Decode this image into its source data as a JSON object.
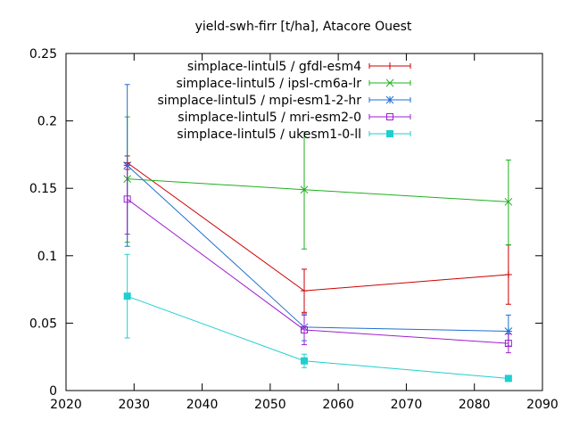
{
  "chart_data": {
    "type": "line",
    "title": "yield-swh-firr [t/ha], Atacore Ouest",
    "xlabel": "",
    "ylabel": "",
    "xlim": [
      2020,
      2090
    ],
    "ylim": [
      0,
      0.25
    ],
    "x_ticks": [
      2020,
      2030,
      2040,
      2050,
      2060,
      2070,
      2080,
      2090
    ],
    "y_ticks": [
      0,
      0.05,
      0.1,
      0.15,
      0.2,
      0.25
    ],
    "y_tick_labels": [
      "0",
      "0.05",
      "0.1",
      "0.15",
      "0.2",
      "0.25"
    ],
    "grid": false,
    "legend_position": "top-right",
    "series": [
      {
        "name": "simplace-lintul5 / gfdl-esm4",
        "color": "#cc0000",
        "marker": "plus",
        "points": [
          {
            "x": 2029,
            "y": 0.169,
            "lo": 0.164,
            "hi": 0.174
          },
          {
            "x": 2055,
            "y": 0.074,
            "lo": 0.058,
            "hi": 0.09
          },
          {
            "x": 2085,
            "y": 0.086,
            "lo": 0.064,
            "hi": 0.108
          }
        ]
      },
      {
        "name": "simplace-lintul5 / ipsl-cm6a-lr",
        "color": "#1faf1f",
        "marker": "cross",
        "points": [
          {
            "x": 2029,
            "y": 0.157,
            "lo": 0.11,
            "hi": 0.203
          },
          {
            "x": 2055,
            "y": 0.149,
            "lo": 0.105,
            "hi": 0.192
          },
          {
            "x": 2085,
            "y": 0.14,
            "lo": 0.108,
            "hi": 0.171
          }
        ]
      },
      {
        "name": "simplace-lintul5 / mpi-esm1-2-hr",
        "color": "#1f6fcf",
        "marker": "star",
        "points": [
          {
            "x": 2029,
            "y": 0.167,
            "lo": 0.107,
            "hi": 0.227
          },
          {
            "x": 2055,
            "y": 0.047,
            "lo": 0.037,
            "hi": 0.057
          },
          {
            "x": 2085,
            "y": 0.044,
            "lo": 0.033,
            "hi": 0.056
          }
        ]
      },
      {
        "name": "simplace-lintul5 / mri-esm2-0",
        "color": "#9e1fcf",
        "marker": "square",
        "points": [
          {
            "x": 2029,
            "y": 0.142,
            "lo": 0.116,
            "hi": 0.168
          },
          {
            "x": 2055,
            "y": 0.045,
            "lo": 0.034,
            "hi": 0.056
          },
          {
            "x": 2085,
            "y": 0.035,
            "lo": 0.028,
            "hi": 0.042
          }
        ]
      },
      {
        "name": "simplace-lintul5 / ukesm1-0-ll",
        "color": "#1fcfcf",
        "marker": "filled-square",
        "points": [
          {
            "x": 2029,
            "y": 0.07,
            "lo": 0.039,
            "hi": 0.101
          },
          {
            "x": 2055,
            "y": 0.022,
            "lo": 0.017,
            "hi": 0.027
          },
          {
            "x": 2085,
            "y": 0.009,
            "lo": 0.007,
            "hi": 0.011
          }
        ]
      }
    ]
  }
}
